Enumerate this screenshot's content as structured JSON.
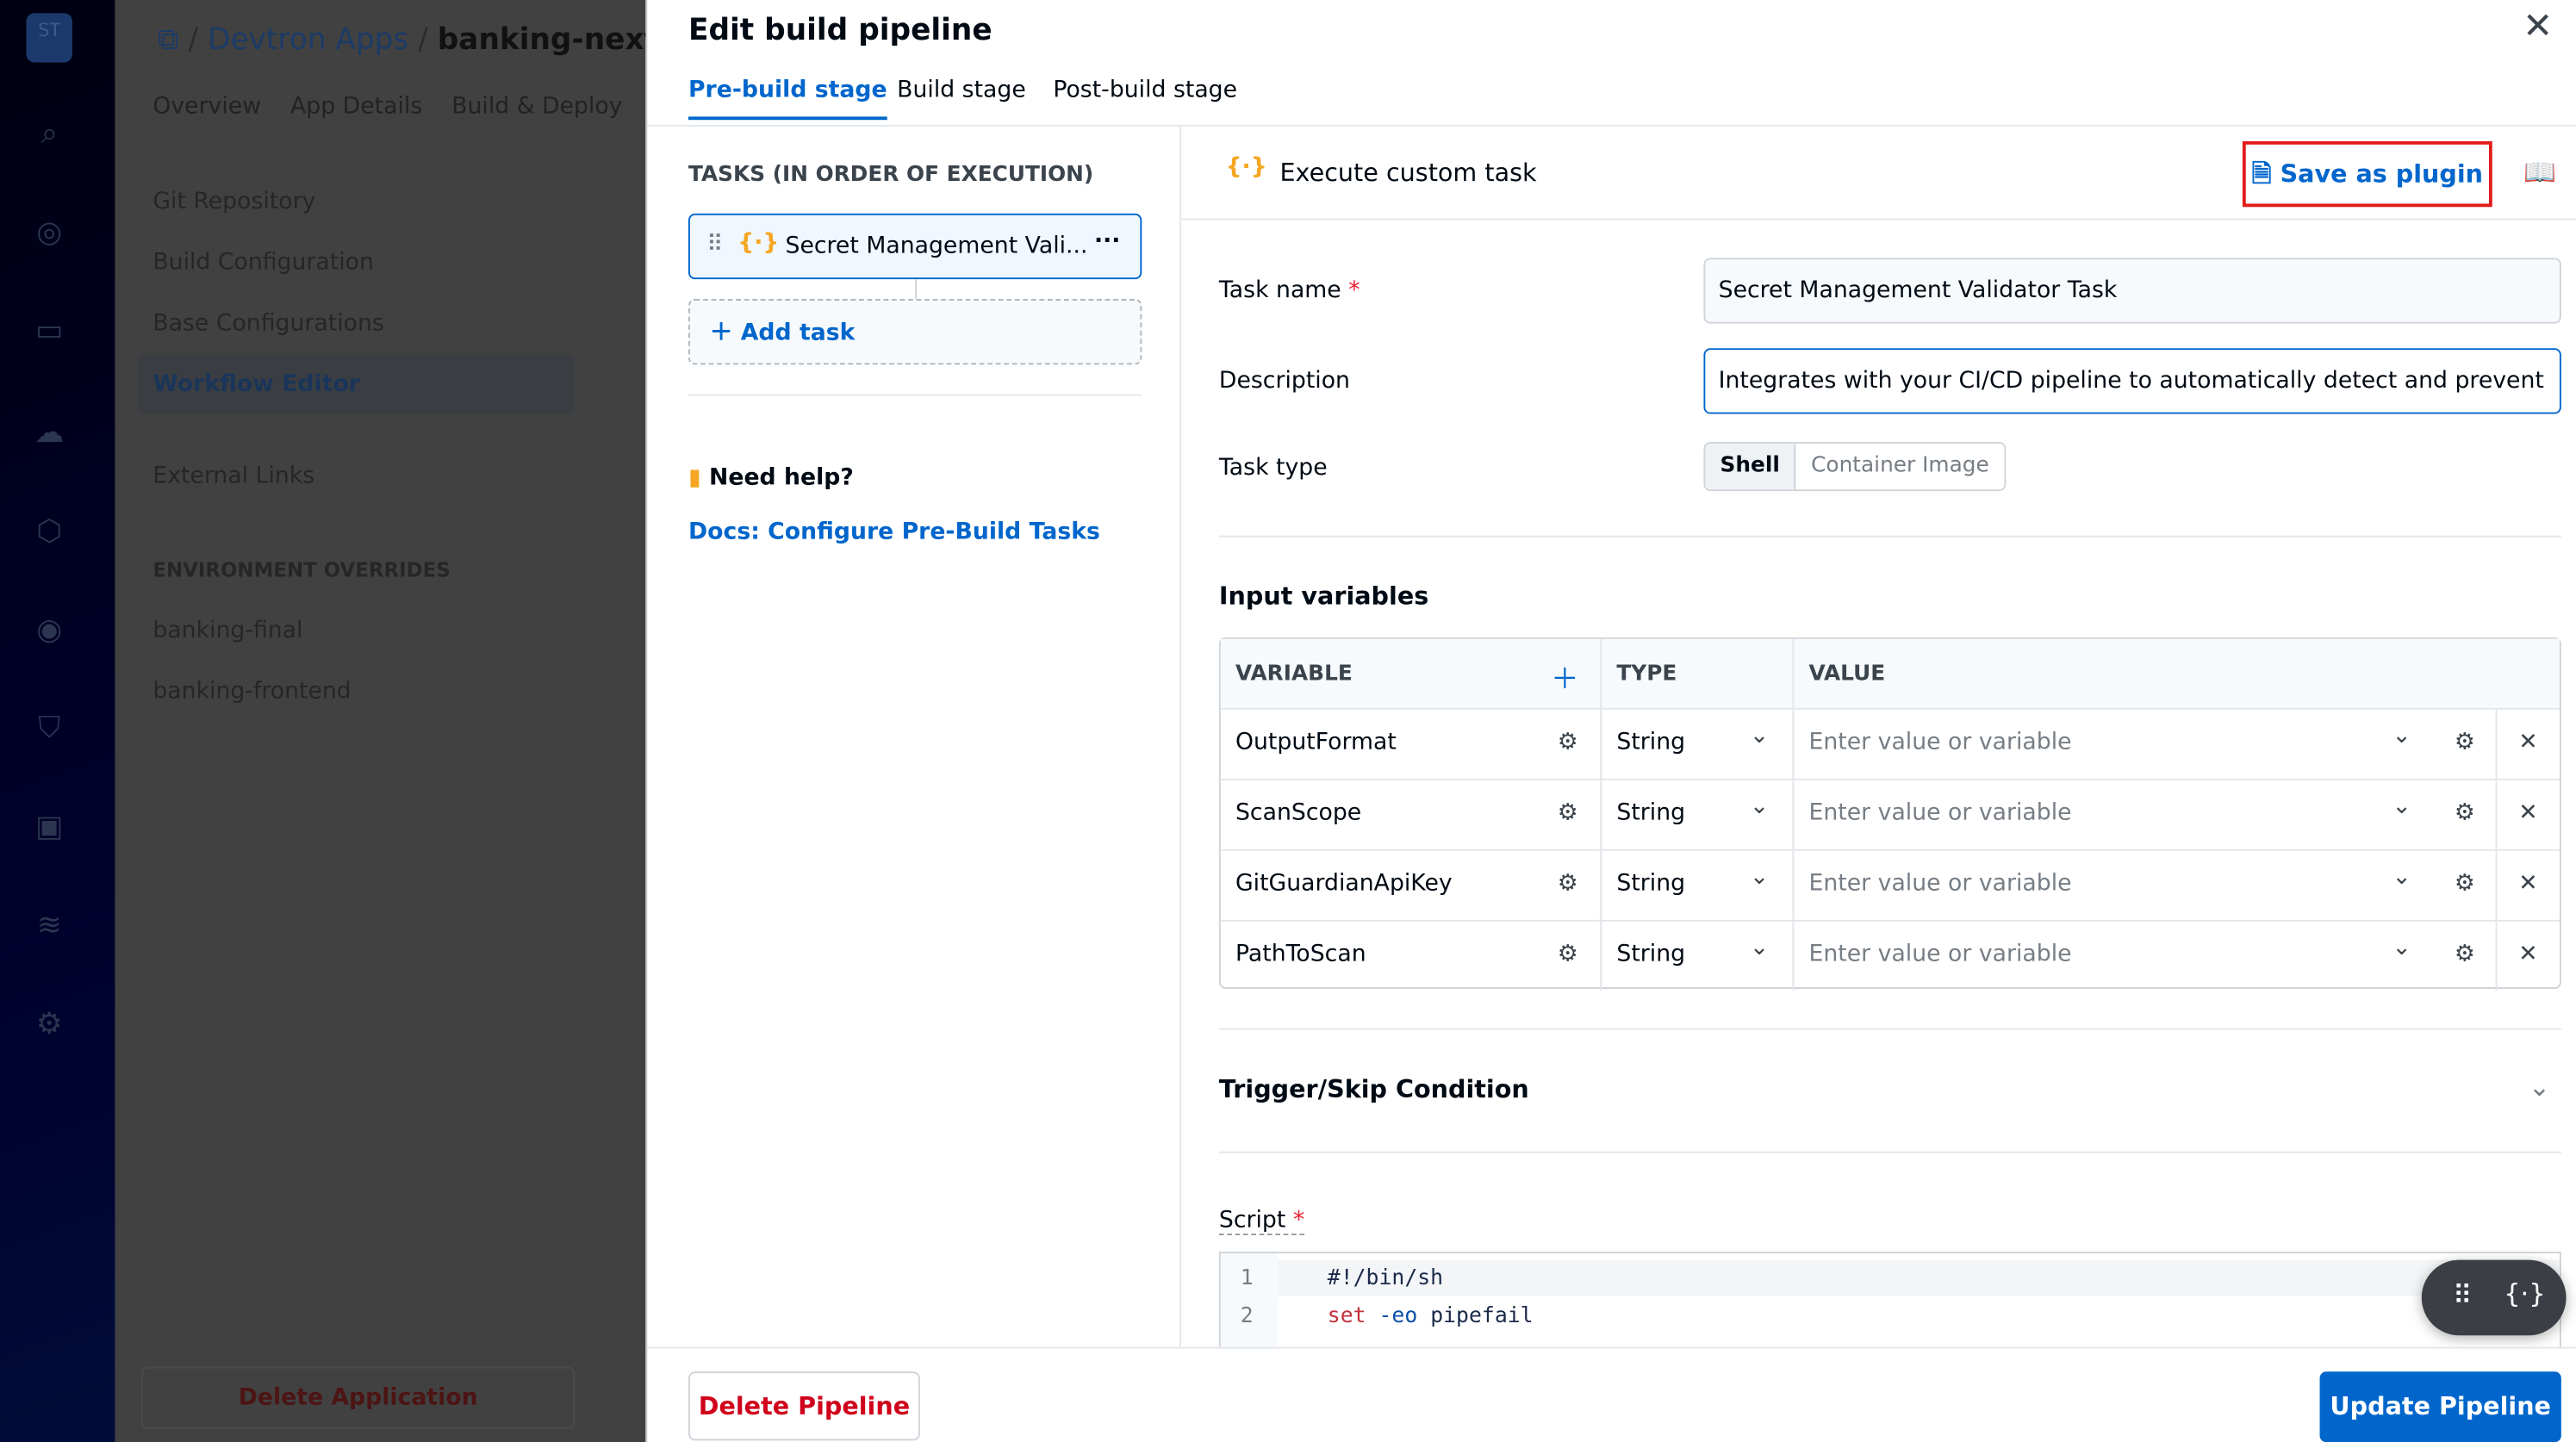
{
  "background": {
    "breadcrumb": {
      "root": "Devtron Apps",
      "app": "banking-next-"
    },
    "tabs": [
      "Overview",
      "App Details",
      "Build & Deploy"
    ],
    "menu": [
      "Git Repository",
      "Build Configuration",
      "Base Configurations",
      "Workflow Editor",
      "External Links"
    ],
    "env_header": "ENVIRONMENT OVERRIDES",
    "envs": [
      "banking-final",
      "banking-frontend"
    ],
    "delete_app": "Delete Application",
    "nav_logo": "ST",
    "nav_icons": [
      "search-icon",
      "globe-icon",
      "monitor-icon",
      "cloud-icon",
      "package-icon",
      "eye-icon",
      "shield-icon",
      "robot-icon",
      "database-icon",
      "gear-icon"
    ]
  },
  "modal": {
    "title": "Edit build pipeline",
    "tabs": [
      {
        "label": "Pre-build stage",
        "active": true
      },
      {
        "label": "Build stage"
      },
      {
        "label": "Post-build stage"
      }
    ],
    "tasks_header": "TASKS (IN ORDER OF EXECUTION)",
    "task": "Secret Management Vali...",
    "add_task": "Add task",
    "help_title": "Need help?",
    "help_link": "Docs: Configure Pre-Build Tasks",
    "task_header": "Execute custom task",
    "save_plugin": "Save as plugin",
    "form": {
      "task_name_label": "Task name",
      "task_name": "Secret Management Validator Task",
      "description_label": "Description",
      "description": "Integrates with your CI/CD pipeline to automatically detect and prevent",
      "task_type_label": "Task type",
      "task_types": [
        "Shell",
        "Container Image"
      ],
      "task_type_selected": "Shell"
    },
    "input_vars": {
      "title": "Input variables",
      "headers": [
        "VARIABLE",
        "TYPE",
        "VALUE"
      ],
      "rows": [
        {
          "name": "OutputFormat",
          "type": "String",
          "placeholder": "Enter value or variable"
        },
        {
          "name": "ScanScope",
          "type": "String",
          "placeholder": "Enter value or variable"
        },
        {
          "name": "GitGuardianApiKey",
          "type": "String",
          "placeholder": "Enter value or variable"
        },
        {
          "name": "PathToScan",
          "type": "String",
          "placeholder": "Enter value or variable"
        }
      ]
    },
    "trigger": "Trigger/Skip Condition",
    "script_label": "Script",
    "script": [
      {
        "n": "1",
        "code": "#!/bin/sh"
      },
      {
        "n": "2",
        "kw": "set",
        "flag": "-eo",
        "rest": "pipefail"
      }
    ],
    "delete_pipeline": "Delete Pipeline",
    "update_pipeline": "Update Pipeline"
  },
  "colors": {
    "accent": "#0066cc",
    "danger": "#d0021b",
    "highlight_box": "#e21b1b"
  }
}
